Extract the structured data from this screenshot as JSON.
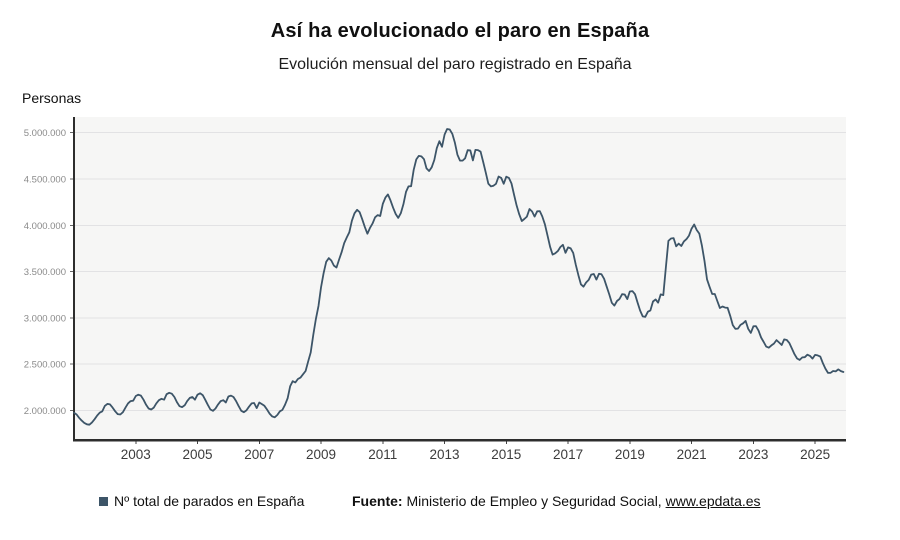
{
  "header": {
    "title": "Así ha evolucionado el paro en España",
    "subtitle": "Evolución mensual del paro registrado en España"
  },
  "legend": {
    "series_label": "Nº total de parados en España"
  },
  "source": {
    "label": "Fuente:",
    "text": " Ministerio de Empleo y Seguridad Social, ",
    "link": "www.epdata.es"
  },
  "chart_data": {
    "type": "line",
    "title": "Así ha evolucionado el paro en España",
    "subtitle": "Evolución mensual del paro registrado en España",
    "ylabel": "Personas",
    "xlabel": "",
    "grid": "horizontal",
    "legend_position": "bottom-left",
    "plot_bg": "#f6f6f5",
    "grid_color": "#e2e2e4",
    "axis_color": "#2d2d2d",
    "y_tick_color": "#8a8a8a",
    "x_tick_color": "#3c3c3c",
    "xlim": [
      2001.0,
      2026.0
    ],
    "ylim": [
      1680000,
      5170000
    ],
    "x_ticks": [
      {
        "year": 2003,
        "label": "2003"
      },
      {
        "year": 2005,
        "label": "2005"
      },
      {
        "year": 2007,
        "label": "2007"
      },
      {
        "year": 2009,
        "label": "2009"
      },
      {
        "year": 2011,
        "label": "2011"
      },
      {
        "year": 2013,
        "label": "2013"
      },
      {
        "year": 2015,
        "label": "2015"
      },
      {
        "year": 2017,
        "label": "2017"
      },
      {
        "year": 2019,
        "label": "2019"
      },
      {
        "year": 2021,
        "label": "2021"
      },
      {
        "year": 2023,
        "label": "2023"
      },
      {
        "year": 2025,
        "label": "2025"
      }
    ],
    "y_ticks": [
      {
        "value": 2000000,
        "label": "2.000.000"
      },
      {
        "value": 2500000,
        "label": "2.500.000"
      },
      {
        "value": 3000000,
        "label": "3.000.000"
      },
      {
        "value": 3500000,
        "label": "3.500.000"
      },
      {
        "value": 4000000,
        "label": "4.000.000"
      },
      {
        "value": 4500000,
        "label": "4.500.000"
      },
      {
        "value": 5000000,
        "label": "5.000.000"
      }
    ],
    "series": [
      {
        "name": "Nº total de parados en España",
        "color": "#3d5568",
        "start_year": 2001,
        "frequency": "monthly",
        "values": [
          1975000,
          1955000,
          1920000,
          1890000,
          1865000,
          1850000,
          1845000,
          1870000,
          1905000,
          1945000,
          1975000,
          1990000,
          2050000,
          2070000,
          2065000,
          2030000,
          1990000,
          1960000,
          1955000,
          1980000,
          2030000,
          2075000,
          2100000,
          2105000,
          2155000,
          2170000,
          2160000,
          2115000,
          2060000,
          2020000,
          2010000,
          2030000,
          2075000,
          2110000,
          2125000,
          2115000,
          2175000,
          2190000,
          2180000,
          2145000,
          2090000,
          2045000,
          2035000,
          2055000,
          2100000,
          2135000,
          2145000,
          2115000,
          2170000,
          2185000,
          2165000,
          2115000,
          2060000,
          2010000,
          1995000,
          2020000,
          2065000,
          2100000,
          2110000,
          2085000,
          2150000,
          2160000,
          2145000,
          2100000,
          2045000,
          1995000,
          1980000,
          2000000,
          2040000,
          2075000,
          2080000,
          2025000,
          2085000,
          2068000,
          2050000,
          2010000,
          1965000,
          1935000,
          1925000,
          1950000,
          1990000,
          2005000,
          2060000,
          2130000,
          2262000,
          2315000,
          2301000,
          2339000,
          2354000,
          2390000,
          2426000,
          2530000,
          2625000,
          2818000,
          2989000,
          3129000,
          3328000,
          3482000,
          3605000,
          3645000,
          3620000,
          3564000,
          3544000,
          3630000,
          3709000,
          3808000,
          3869000,
          3924000,
          4049000,
          4130000,
          4167000,
          4142000,
          4066000,
          3982000,
          3909000,
          3970000,
          4018000,
          4086000,
          4110000,
          4100000,
          4231000,
          4299000,
          4334000,
          4269000,
          4190000,
          4122000,
          4080000,
          4131000,
          4227000,
          4361000,
          4420000,
          4422000,
          4600000,
          4712000,
          4750000,
          4744000,
          4714000,
          4615000,
          4587000,
          4626000,
          4705000,
          4834000,
          4908000,
          4848000,
          4981000,
          5040000,
          5035000,
          4989000,
          4891000,
          4764000,
          4699000,
          4699000,
          4724000,
          4811000,
          4809000,
          4701000,
          4814000,
          4812000,
          4795000,
          4684000,
          4572000,
          4450000,
          4420000,
          4428000,
          4448000,
          4527000,
          4512000,
          4448000,
          4525000,
          4512000,
          4452000,
          4333000,
          4215000,
          4120000,
          4046000,
          4068000,
          4094000,
          4176000,
          4149000,
          4094000,
          4151000,
          4153000,
          4095000,
          4011000,
          3891000,
          3767000,
          3683000,
          3697000,
          3721000,
          3765000,
          3789000,
          3703000,
          3761000,
          3750000,
          3702000,
          3573000,
          3461000,
          3362000,
          3336000,
          3382000,
          3410000,
          3467000,
          3474000,
          3413000,
          3476000,
          3470000,
          3422000,
          3336000,
          3252000,
          3162000,
          3132000,
          3182000,
          3203000,
          3255000,
          3252000,
          3202000,
          3285000,
          3289000,
          3255000,
          3163000,
          3079000,
          3015000,
          3011000,
          3066000,
          3080000,
          3177000,
          3199000,
          3163000,
          3253000,
          3246000,
          3548000,
          3831000,
          3857000,
          3862000,
          3773000,
          3802000,
          3776000,
          3826000,
          3851000,
          3889000,
          3964000,
          4008000,
          3949000,
          3910000,
          3781000,
          3614000,
          3416000,
          3334000,
          3257000,
          3257000,
          3182000,
          3106000,
          3123000,
          3111000,
          3108000,
          3022000,
          2922000,
          2881000,
          2884000,
          2924000,
          2941000,
          2967000,
          2881000,
          2837000,
          2908000,
          2911000,
          2862000,
          2788000,
          2739000,
          2689000,
          2677000,
          2702000,
          2722000,
          2759000,
          2734000,
          2707000,
          2767000,
          2760000,
          2727000,
          2666000,
          2607000,
          2561000,
          2546000,
          2572000,
          2575000,
          2602000,
          2589000,
          2560000,
          2599000,
          2594000,
          2581000,
          2512000,
          2451000,
          2405000,
          2406000,
          2426000,
          2421000,
          2443000,
          2424000,
          2415000
        ]
      }
    ]
  }
}
